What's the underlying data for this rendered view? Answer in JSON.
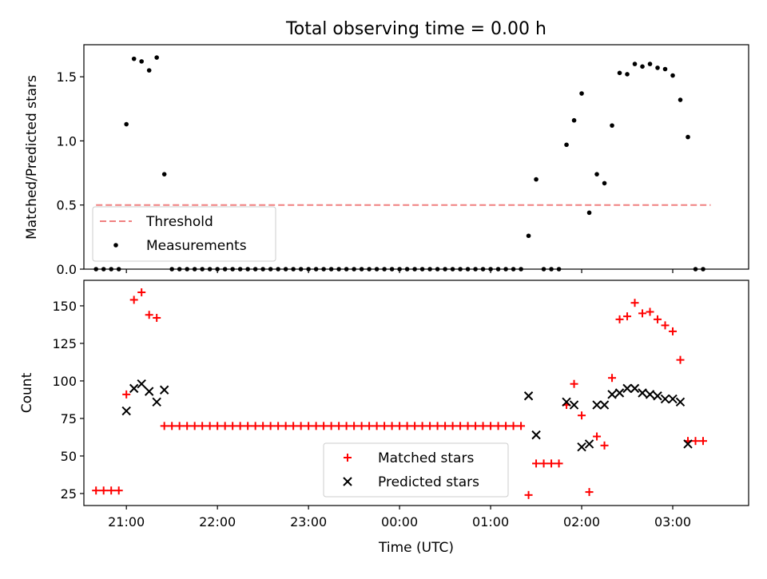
{
  "chart_data": [
    {
      "type": "scatter",
      "title": "Total observing time = 0.00 h",
      "ylabel": "Matched/Predicted stars",
      "xlabel": "",
      "x_unit": "hours",
      "xlim": [
        "20:32",
        "03:50"
      ],
      "ylim": [
        0,
        1.75
      ],
      "yticks": [
        0.0,
        0.5,
        1.0,
        1.5
      ],
      "ytick_labels": [
        "0.0",
        "0.5",
        "1.0",
        "1.5"
      ],
      "legend_position": "lower-left",
      "threshold": {
        "name": "Threshold",
        "y": 0.5,
        "x_start": "20:40",
        "x_end": "03:25",
        "color": "#f08080"
      },
      "series": [
        {
          "name": "Measurements",
          "color": "#000000",
          "points": [
            [
              "20:40",
              0
            ],
            [
              "20:45",
              0
            ],
            [
              "20:50",
              0
            ],
            [
              "20:55",
              0
            ],
            [
              "21:00",
              1.13
            ],
            [
              "21:05",
              1.64
            ],
            [
              "21:10",
              1.62
            ],
            [
              "21:15",
              1.55
            ],
            [
              "21:20",
              1.65
            ],
            [
              "21:25",
              0.74
            ],
            [
              "21:30",
              0
            ],
            [
              "21:35",
              0
            ],
            [
              "21:40",
              0
            ],
            [
              "21:45",
              0
            ],
            [
              "21:50",
              0
            ],
            [
              "21:55",
              0
            ],
            [
              "22:00",
              0
            ],
            [
              "22:05",
              0
            ],
            [
              "22:10",
              0
            ],
            [
              "22:15",
              0
            ],
            [
              "22:20",
              0
            ],
            [
              "22:25",
              0
            ],
            [
              "22:30",
              0
            ],
            [
              "22:35",
              0
            ],
            [
              "22:40",
              0
            ],
            [
              "22:45",
              0
            ],
            [
              "22:50",
              0
            ],
            [
              "22:55",
              0
            ],
            [
              "23:00",
              0
            ],
            [
              "23:05",
              0
            ],
            [
              "23:10",
              0
            ],
            [
              "23:15",
              0
            ],
            [
              "23:20",
              0
            ],
            [
              "23:25",
              0
            ],
            [
              "23:30",
              0
            ],
            [
              "23:35",
              0
            ],
            [
              "23:40",
              0
            ],
            [
              "23:45",
              0
            ],
            [
              "23:50",
              0
            ],
            [
              "23:55",
              0
            ],
            [
              "00:00",
              0
            ],
            [
              "00:05",
              0
            ],
            [
              "00:10",
              0
            ],
            [
              "00:15",
              0
            ],
            [
              "00:20",
              0
            ],
            [
              "00:25",
              0
            ],
            [
              "00:30",
              0
            ],
            [
              "00:35",
              0
            ],
            [
              "00:40",
              0
            ],
            [
              "00:45",
              0
            ],
            [
              "00:50",
              0
            ],
            [
              "00:55",
              0
            ],
            [
              "01:00",
              0
            ],
            [
              "01:05",
              0
            ],
            [
              "01:10",
              0
            ],
            [
              "01:15",
              0
            ],
            [
              "01:20",
              0
            ],
            [
              "01:25",
              0.26
            ],
            [
              "01:30",
              0.7
            ],
            [
              "01:35",
              0
            ],
            [
              "01:40",
              0
            ],
            [
              "01:45",
              0
            ],
            [
              "01:50",
              0.97
            ],
            [
              "01:55",
              1.16
            ],
            [
              "02:00",
              1.37
            ],
            [
              "02:05",
              0.44
            ],
            [
              "02:10",
              0.74
            ],
            [
              "02:15",
              0.67
            ],
            [
              "02:20",
              1.12
            ],
            [
              "02:25",
              1.53
            ],
            [
              "02:30",
              1.52
            ],
            [
              "02:35",
              1.6
            ],
            [
              "02:40",
              1.58
            ],
            [
              "02:45",
              1.6
            ],
            [
              "02:50",
              1.57
            ],
            [
              "02:55",
              1.56
            ],
            [
              "03:00",
              1.51
            ],
            [
              "03:05",
              1.32
            ],
            [
              "03:10",
              1.03
            ],
            [
              "03:15",
              0
            ],
            [
              "03:20",
              0
            ]
          ]
        }
      ]
    },
    {
      "type": "scatter",
      "title": "",
      "ylabel": "Count",
      "xlabel": "Time (UTC)",
      "x_unit": "hours",
      "xlim": [
        "20:32",
        "03:50"
      ],
      "ylim": [
        17,
        167
      ],
      "yticks": [
        25,
        50,
        75,
        100,
        125,
        150
      ],
      "ytick_labels": [
        "25",
        "50",
        "75",
        "100",
        "125",
        "150"
      ],
      "xticks": [
        "21:00",
        "22:00",
        "23:00",
        "00:00",
        "01:00",
        "02:00",
        "03:00"
      ],
      "xtick_labels": [
        "21:00",
        "22:00",
        "23:00",
        "00:00",
        "01:00",
        "02:00",
        "03:00"
      ],
      "legend_position": "lower-center",
      "series": [
        {
          "name": "Matched stars",
          "marker": "plus",
          "color": "#ff0000",
          "points": [
            [
              "20:40",
              27
            ],
            [
              "20:45",
              27
            ],
            [
              "20:50",
              27
            ],
            [
              "20:55",
              27
            ],
            [
              "21:00",
              91
            ],
            [
              "21:05",
              154
            ],
            [
              "21:10",
              159
            ],
            [
              "21:15",
              144
            ],
            [
              "21:20",
              142
            ],
            [
              "21:25",
              70
            ],
            [
              "21:30",
              70
            ],
            [
              "21:35",
              70
            ],
            [
              "21:40",
              70
            ],
            [
              "21:45",
              70
            ],
            [
              "21:50",
              70
            ],
            [
              "21:55",
              70
            ],
            [
              "22:00",
              70
            ],
            [
              "22:05",
              70
            ],
            [
              "22:10",
              70
            ],
            [
              "22:15",
              70
            ],
            [
              "22:20",
              70
            ],
            [
              "22:25",
              70
            ],
            [
              "22:30",
              70
            ],
            [
              "22:35",
              70
            ],
            [
              "22:40",
              70
            ],
            [
              "22:45",
              70
            ],
            [
              "22:50",
              70
            ],
            [
              "22:55",
              70
            ],
            [
              "23:00",
              70
            ],
            [
              "23:05",
              70
            ],
            [
              "23:10",
              70
            ],
            [
              "23:15",
              70
            ],
            [
              "23:20",
              70
            ],
            [
              "23:25",
              70
            ],
            [
              "23:30",
              70
            ],
            [
              "23:35",
              70
            ],
            [
              "23:40",
              70
            ],
            [
              "23:45",
              70
            ],
            [
              "23:50",
              70
            ],
            [
              "23:55",
              70
            ],
            [
              "00:00",
              70
            ],
            [
              "00:05",
              70
            ],
            [
              "00:10",
              70
            ],
            [
              "00:15",
              70
            ],
            [
              "00:20",
              70
            ],
            [
              "00:25",
              70
            ],
            [
              "00:30",
              70
            ],
            [
              "00:35",
              70
            ],
            [
              "00:40",
              70
            ],
            [
              "00:45",
              70
            ],
            [
              "00:50",
              70
            ],
            [
              "00:55",
              70
            ],
            [
              "01:00",
              70
            ],
            [
              "01:05",
              70
            ],
            [
              "01:10",
              70
            ],
            [
              "01:15",
              70
            ],
            [
              "01:20",
              70
            ],
            [
              "01:25",
              24
            ],
            [
              "01:30",
              45
            ],
            [
              "01:35",
              45
            ],
            [
              "01:40",
              45
            ],
            [
              "01:45",
              45
            ],
            [
              "01:50",
              84
            ],
            [
              "01:55",
              98
            ],
            [
              "02:00",
              77
            ],
            [
              "02:05",
              26
            ],
            [
              "02:10",
              63
            ],
            [
              "02:15",
              57
            ],
            [
              "02:20",
              102
            ],
            [
              "02:25",
              141
            ],
            [
              "02:30",
              143
            ],
            [
              "02:35",
              152
            ],
            [
              "02:40",
              145
            ],
            [
              "02:45",
              146
            ],
            [
              "02:50",
              141
            ],
            [
              "02:55",
              137
            ],
            [
              "03:00",
              133
            ],
            [
              "03:05",
              114
            ],
            [
              "03:10",
              60
            ],
            [
              "03:15",
              60
            ],
            [
              "03:20",
              60
            ]
          ]
        },
        {
          "name": "Predicted stars",
          "marker": "x",
          "color": "#000000",
          "points": [
            [
              "21:00",
              80
            ],
            [
              "21:05",
              95
            ],
            [
              "21:10",
              98
            ],
            [
              "21:15",
              93
            ],
            [
              "21:20",
              86
            ],
            [
              "21:25",
              94
            ],
            [
              "01:25",
              90
            ],
            [
              "01:30",
              64
            ],
            [
              "01:50",
              86
            ],
            [
              "01:55",
              84
            ],
            [
              "02:00",
              56
            ],
            [
              "02:05",
              58
            ],
            [
              "02:10",
              84
            ],
            [
              "02:15",
              84
            ],
            [
              "02:20",
              91
            ],
            [
              "02:25",
              92
            ],
            [
              "02:30",
              95
            ],
            [
              "02:35",
              95
            ],
            [
              "02:40",
              92
            ],
            [
              "02:45",
              91
            ],
            [
              "02:50",
              90
            ],
            [
              "02:55",
              88
            ],
            [
              "03:00",
              88
            ],
            [
              "03:05",
              86
            ],
            [
              "03:10",
              58
            ]
          ]
        }
      ]
    }
  ]
}
